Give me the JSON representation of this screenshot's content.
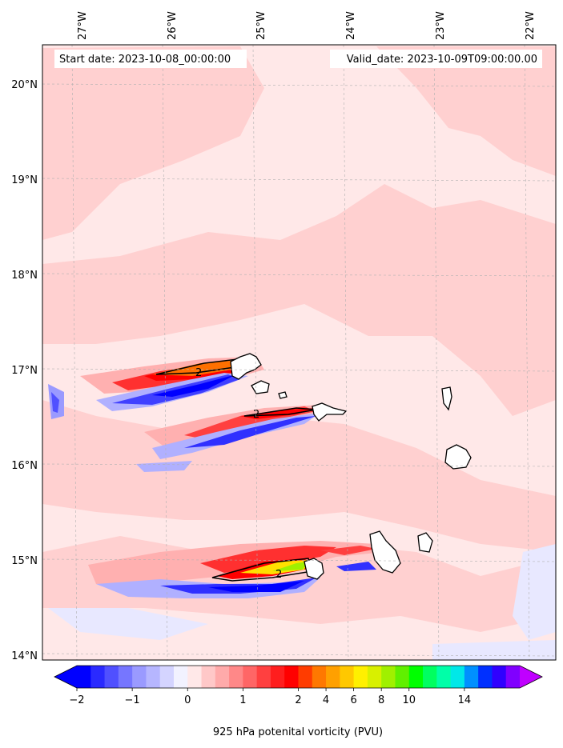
{
  "map": {
    "start_date": "Start date: 2023-10-08_00:00:00",
    "valid_date": "Valid_date: 2023-10-09T09:00:00.00",
    "lon_labels": [
      "27°W",
      "26°W",
      "25°W",
      "24°W",
      "23°W",
      "22°W"
    ],
    "lat_labels": [
      "20°N",
      "19°N",
      "18°N",
      "17°N",
      "16°N",
      "15°N",
      "14°N"
    ],
    "contour_labels": [
      "2",
      "2",
      "2"
    ],
    "background_color": "#ffe8e8",
    "patch_color": "#ffd0d0"
  },
  "colorbar": {
    "title": "925 hPa potenital vorticity (PVU)",
    "ticks": [
      "−2",
      "−1",
      "0",
      "1",
      "2",
      "4",
      "6",
      "8",
      "10",
      "14"
    ],
    "colors": [
      "#0000ff",
      "#2a2aff",
      "#5050ff",
      "#7676ff",
      "#9a9aff",
      "#b6b6ff",
      "#d4d4ff",
      "#f2f2ff",
      "#ffe8e8",
      "#ffc8c8",
      "#ffaaaa",
      "#ff8888",
      "#ff6666",
      "#ff4040",
      "#ff1e1e",
      "#ff0000",
      "#ff3c00",
      "#ff7800",
      "#ffa000",
      "#ffc800",
      "#fff000",
      "#d8f000",
      "#a0f000",
      "#60f000",
      "#00ff00",
      "#00ff60",
      "#00ffa8",
      "#00e8e8",
      "#0090ff",
      "#0030ff",
      "#3000ff",
      "#8000ff"
    ],
    "extend_low": "#0000ff",
    "extend_high": "#c000ff"
  }
}
